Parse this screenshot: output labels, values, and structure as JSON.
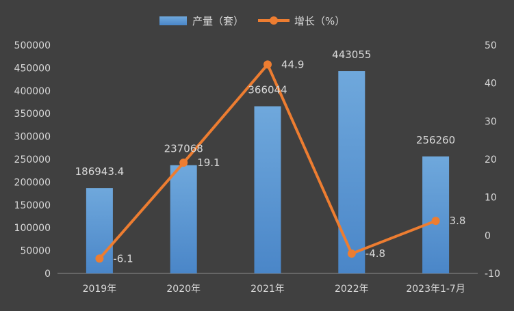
{
  "chart_data": {
    "type": "bar",
    "categories": [
      "2019年",
      "2020年",
      "2021年",
      "2022年",
      "2023年1-7月"
    ],
    "series": [
      {
        "name": "产量（套）",
        "type": "bar",
        "axis": "left",
        "color": "#5B9BD5",
        "values": [
          186943.4,
          237068,
          366044,
          443055,
          256260
        ],
        "labels": [
          "186943.4",
          "237068",
          "366044",
          "443055",
          "256260"
        ]
      },
      {
        "name": "增长（%）",
        "type": "line",
        "axis": "right",
        "color": "#ED7D31",
        "values": [
          -6.1,
          19.1,
          44.9,
          -4.8,
          3.8
        ],
        "labels": [
          "-6.1",
          "19.1",
          "44.9",
          "-4.8",
          "3.8"
        ]
      }
    ],
    "ylim": [
      0,
      500000
    ],
    "y_ticks": [
      "0",
      "50000",
      "100000",
      "150000",
      "200000",
      "250000",
      "300000",
      "350000",
      "400000",
      "450000",
      "500000"
    ],
    "y2lim": [
      -10,
      50
    ],
    "y2_ticks": [
      "-10",
      "0",
      "10",
      "20",
      "30",
      "40",
      "50"
    ],
    "legend_position": "top-center",
    "grid": false,
    "colors": {
      "background": "#404040",
      "text": "#D9D9D9",
      "axis": "#8C8C8C"
    }
  }
}
